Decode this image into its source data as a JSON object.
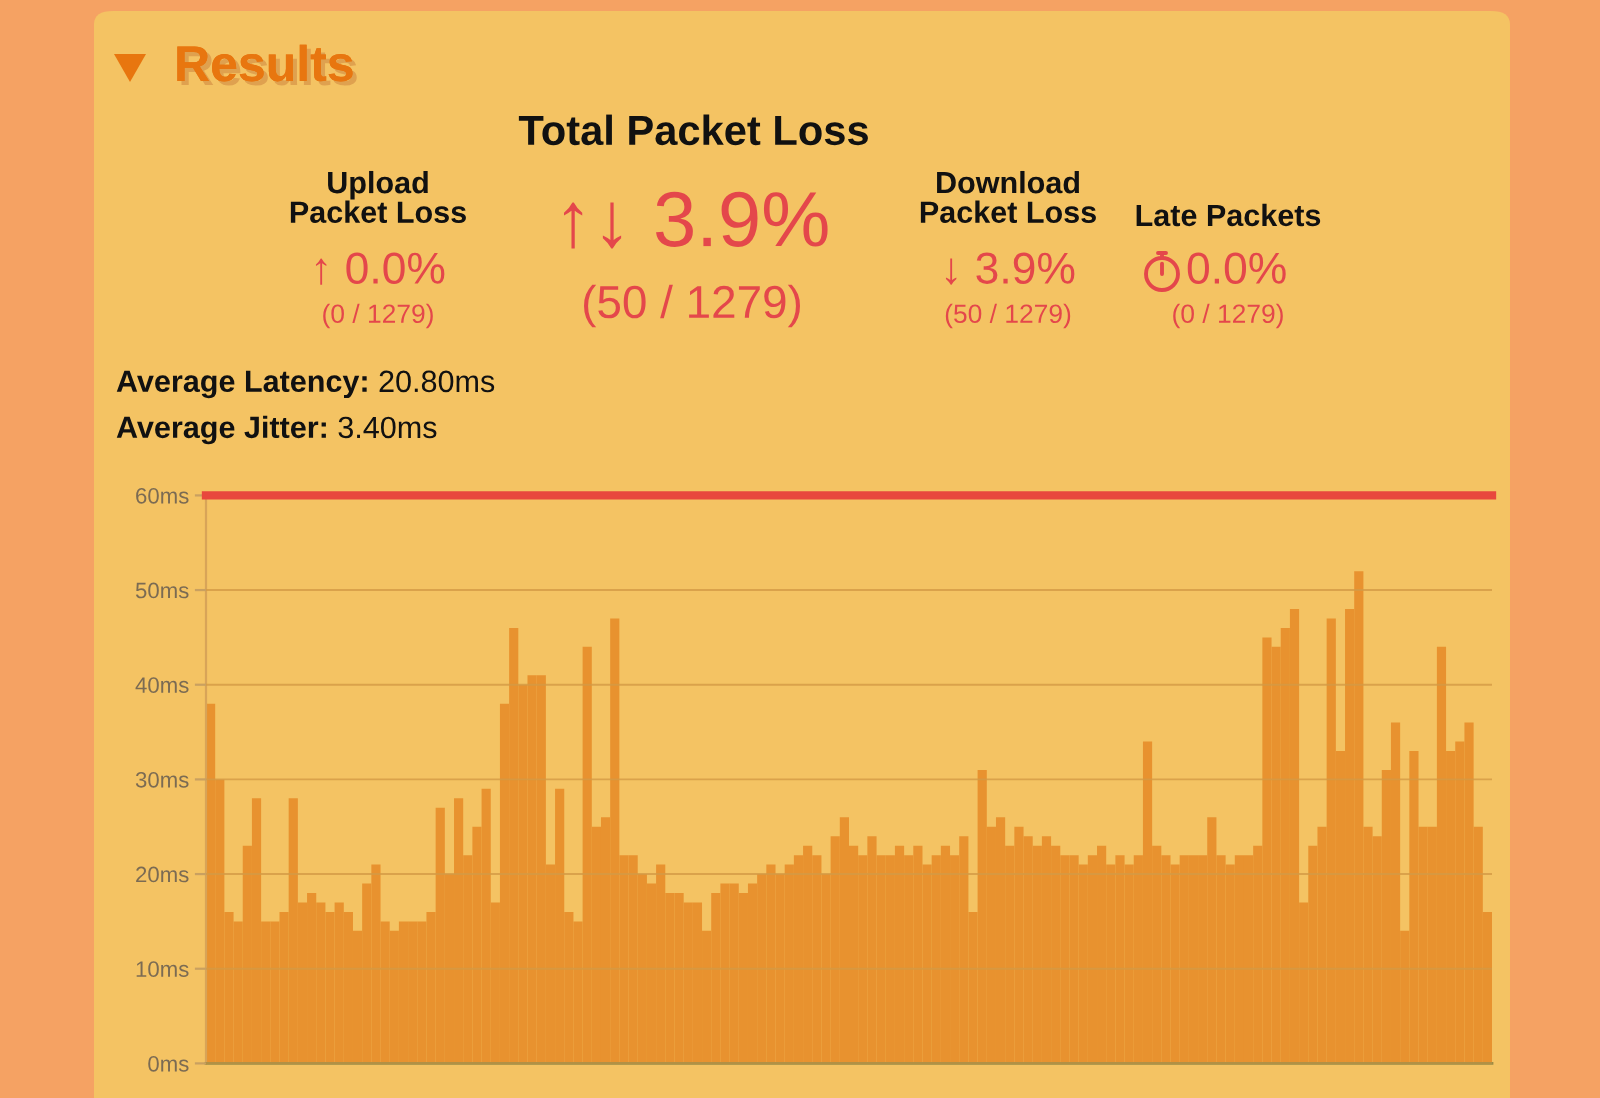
{
  "chart_data": [
    {
      "type": "other",
      "title": "Results",
      "annotations": [
        "Total Packet Loss",
        "Upload\nPacket Loss",
        "↑ 0.0%",
        "(0 / 1279)",
        "↑↓ 3.9%",
        "(50 / 1279)",
        "Download\nPacket Loss",
        "↓ 3.9%",
        "(50 / 1279)",
        "Late Packets",
        "0.0%",
        "(0 / 1279)",
        "Average Latency: 20.80ms",
        "Average Jitter: 3.40ms"
      ]
    },
    {
      "type": "bar",
      "color": "#e8922f",
      "tick_labels": "y",
      "grid": "y",
      "categories": [
        null,
        null,
        null,
        null,
        null,
        null,
        null,
        null,
        null,
        null,
        null,
        null,
        null,
        null,
        null,
        null,
        null,
        null,
        null,
        null,
        null,
        null,
        null,
        null,
        null,
        null,
        null,
        null,
        null,
        null,
        null,
        null,
        null,
        null,
        null,
        null,
        null,
        null,
        null,
        null,
        null,
        null,
        null,
        null,
        null,
        null,
        null,
        null,
        null,
        null,
        null,
        null,
        null,
        null,
        null,
        null,
        null,
        null,
        null,
        null,
        null,
        null,
        null,
        null,
        null,
        null,
        null,
        null,
        null,
        null,
        null,
        null,
        null,
        null,
        null,
        null,
        null,
        null,
        null,
        null,
        null,
        null,
        null,
        null,
        null,
        null,
        null,
        null,
        null,
        null,
        null,
        null,
        null,
        null,
        null,
        null,
        null,
        null,
        null,
        null,
        null,
        null,
        null,
        null,
        null,
        null,
        null,
        null,
        null,
        null,
        null,
        null,
        null,
        null,
        null,
        null,
        null,
        null,
        null,
        null,
        null,
        null,
        null,
        null,
        null,
        null,
        null,
        null,
        null,
        null,
        null,
        null,
        null,
        null,
        null,
        null,
        null,
        null,
        null,
        null
      ],
      "values": [
        38,
        30,
        16,
        15,
        23,
        28,
        15,
        15,
        16,
        28,
        17,
        18,
        17,
        16,
        17,
        16,
        14,
        19,
        21,
        15,
        14,
        15,
        15,
        15,
        16,
        27,
        20,
        28,
        22,
        25,
        29,
        17,
        38,
        46,
        40,
        41,
        41,
        21,
        29,
        16,
        15,
        44,
        25,
        26,
        47,
        22,
        22,
        20,
        19,
        21,
        18,
        18,
        17,
        17,
        14,
        18,
        19,
        19,
        18,
        19,
        20,
        21,
        20,
        21,
        22,
        23,
        22,
        20,
        24,
        26,
        23,
        22,
        24,
        22,
        22,
        23,
        22,
        23,
        21,
        22,
        23,
        22,
        24,
        16,
        31,
        25,
        26,
        23,
        25,
        24,
        23,
        24,
        23,
        22,
        22,
        21,
        22,
        23,
        21,
        22,
        21,
        22,
        34,
        23,
        22,
        21,
        22,
        22,
        22,
        26,
        22,
        21,
        22,
        22,
        23,
        45,
        44,
        46,
        48,
        17,
        23,
        25,
        47,
        33,
        48,
        52,
        25,
        24,
        31,
        36,
        14,
        33,
        25,
        25,
        44,
        33,
        34,
        36,
        25,
        16
      ],
      "ylim": [
        0,
        60
      ],
      "yticks": [
        {
          "value": 0,
          "label": "0ms"
        },
        {
          "value": 10,
          "label": "10ms"
        },
        {
          "value": 20,
          "label": "20ms"
        },
        {
          "value": 30,
          "label": "30ms"
        },
        {
          "value": 40,
          "label": "40ms"
        },
        {
          "value": 50,
          "label": "50ms"
        },
        {
          "value": 60,
          "label": "60ms"
        }
      ],
      "ref_lines": [
        {
          "axis": "y",
          "value": 60,
          "color": "#e8473d"
        }
      ]
    }
  ]
}
